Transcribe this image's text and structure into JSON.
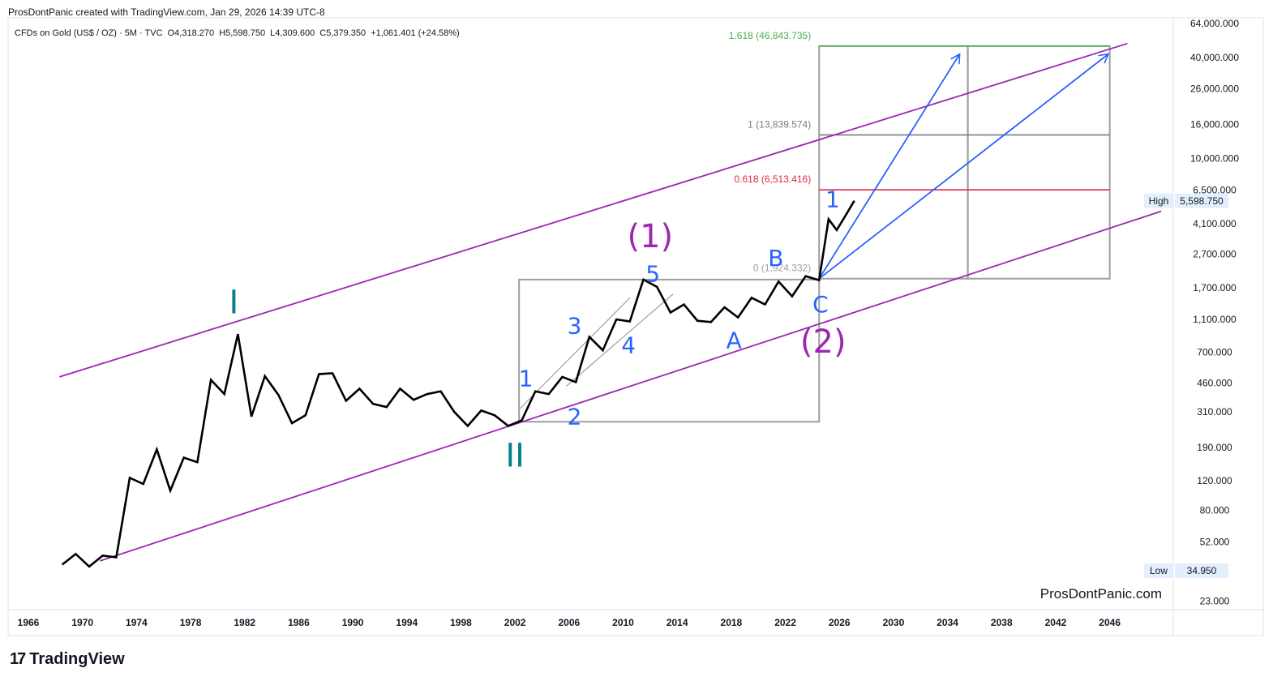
{
  "header": {
    "credit": "ProsDontPanic created with TradingView.com, Jan 29, 2026 14:39 UTC-8"
  },
  "symbol": {
    "name": "CFDs on Gold (US$ / OZ) · 5M · TVC",
    "open": "O4,318.270",
    "high": "H5,598.750",
    "low": "L4,309.600",
    "close": "C5,379.350",
    "change": "+1,061.401 (+24.58%)"
  },
  "watermark": "ProsDontPanic.com",
  "footer": {
    "logo_mark": "17",
    "logo_text": "TradingView"
  },
  "colors": {
    "price_line": "#000000",
    "channel": "#9c27b0",
    "wave_blue": "#2962ff",
    "wave_purple": "#9c27b0",
    "wave_teal": "#00838f",
    "fib_green": "#4caf50",
    "fib_gray": "#787b86",
    "fib_red": "#e0254a",
    "box_gray": "#9e9e9e",
    "axis_line": "#e0e3eb"
  },
  "chart_data": {
    "type": "line",
    "title": "CFDs on Gold (US$ / OZ) · 5M · TVC",
    "scale": "log",
    "x_ticks": [
      "1966",
      "1970",
      "1974",
      "1978",
      "1982",
      "1986",
      "1990",
      "1994",
      "1998",
      "2002",
      "2006",
      "2010",
      "2014",
      "2018",
      "2022",
      "2026",
      "2030",
      "2034",
      "2038",
      "2042",
      "2046"
    ],
    "y_ticks": [
      "64,000.000",
      "40,000.000",
      "26,000.000",
      "16,000.000",
      "10,000.000",
      "6,500.000",
      "4,100.000",
      "2,700.000",
      "1,700.000",
      "1,100.000",
      "700.000",
      "460.000",
      "310.000",
      "190.000",
      "120.000",
      "80.000",
      "52.000",
      "23.000"
    ],
    "y_tick_values": [
      64000,
      40000,
      26000,
      16000,
      10000,
      6500,
      4100,
      2700,
      1700,
      1100,
      700,
      460,
      310,
      190,
      120,
      80,
      52,
      23
    ],
    "xlim": [
      1964.5,
      2050.7
    ],
    "ylim": [
      20.5,
      69000
    ],
    "series": [
      {
        "name": "Gold price",
        "x": [
          1968.5,
          1969.5,
          1970.5,
          1971.5,
          1972.5,
          1973.5,
          1974.5,
          1975.5,
          1976.5,
          1977.5,
          1978.5,
          1979.5,
          1980.5,
          1981.5,
          1982.5,
          1983.5,
          1984.5,
          1985.5,
          1986.5,
          1987.5,
          1988.5,
          1989.5,
          1990.5,
          1991.5,
          1992.5,
          1993.5,
          1994.5,
          1995.5,
          1996.5,
          1997.5,
          1998.5,
          1999.5,
          2000.5,
          2001.5,
          2002.5,
          2003.5,
          2004.5,
          2005.5,
          2006.5,
          2007.5,
          2008.5,
          2009.5,
          2010.5,
          2011.5,
          2012.5,
          2013.5,
          2014.5,
          2015.5,
          2016.5,
          2017.5,
          2018.5,
          2019.5,
          2020.5,
          2021.5,
          2022.5,
          2023.5,
          2024.5,
          2025.2,
          2025.8,
          2026.4,
          2027.1
        ],
        "y": [
          38,
          44,
          37,
          43,
          42,
          125,
          115,
          185,
          105,
          165,
          155,
          480,
          395,
          900,
          290,
          505,
          390,
          265,
          295,
          520,
          525,
          360,
          425,
          345,
          330,
          425,
          365,
          395,
          410,
          310,
          255,
          315,
          295,
          255,
          275,
          410,
          395,
          500,
          465,
          865,
          720,
          1100,
          1070,
          1900,
          1720,
          1210,
          1350,
          1080,
          1060,
          1300,
          1130,
          1480,
          1350,
          1850,
          1510,
          1990,
          1885,
          4350,
          3750,
          4500,
          5600
        ]
      }
    ],
    "channel": {
      "upper": {
        "from": [
          1968.3,
          500
        ],
        "to": [
          2047.3,
          48500
        ]
      },
      "lower": {
        "from": [
          1971.3,
          40
        ],
        "to": [
          2049.8,
          4850
        ]
      }
    },
    "minor_channels": [
      {
        "from": [
          2002.3,
          320
        ],
        "to": [
          2010.5,
          1480
        ]
      },
      {
        "from": [
          2005.8,
          440
        ],
        "to": [
          2013.7,
          1560
        ]
      }
    ],
    "boxes": [
      {
        "x1": 2002.3,
        "x2": 2024.5,
        "y1": 1900,
        "y2": 270
      },
      {
        "x1": 2024.5,
        "x2": 2035.5,
        "y1": 46843.735,
        "y2": 1924.332
      },
      {
        "x1": 2035.5,
        "x2": 2046.0,
        "y1": 46843.735,
        "y2": 1924.332
      }
    ],
    "fib_levels": [
      {
        "label": "1.618 (46,843.735)",
        "value": 46843.735,
        "color": "#4caf50"
      },
      {
        "label": "1 (13,839.574)",
        "value": 13839.574,
        "color": "#787b86"
      },
      {
        "label": "0.618 (6,513.416)",
        "value": 6513.416,
        "color": "#e0254a"
      },
      {
        "label": "0 (1,924.332)",
        "value": 1924.332,
        "color": "#9e9e9e"
      }
    ],
    "fib_range": [
      2024.5,
      2046.0
    ],
    "arrows": [
      {
        "from": [
          2024.5,
          1924.332
        ],
        "to": [
          2034.9,
          42000
        ]
      },
      {
        "from": [
          2024.5,
          1924.332
        ],
        "to": [
          2045.9,
          42000
        ]
      }
    ],
    "wave_labels": [
      {
        "text": "I",
        "x": 1981.2,
        "y": 1350,
        "color": "#00838f",
        "size": 40
      },
      {
        "text": "II",
        "x": 2002.0,
        "y": 165,
        "color": "#00838f",
        "size": 40
      },
      {
        "text": "(1)",
        "x": 2012.0,
        "y": 3350,
        "color": "#9c27b0",
        "size": 40
      },
      {
        "text": "(2)",
        "x": 2024.8,
        "y": 790,
        "color": "#9c27b0",
        "size": 40
      },
      {
        "text": "1",
        "x": 2002.8,
        "y": 480,
        "color": "#2962ff",
        "size": 28
      },
      {
        "text": "2",
        "x": 2006.4,
        "y": 285,
        "color": "#2962ff",
        "size": 28
      },
      {
        "text": "3",
        "x": 2006.4,
        "y": 990,
        "color": "#2962ff",
        "size": 28
      },
      {
        "text": "4",
        "x": 2010.4,
        "y": 760,
        "color": "#2962ff",
        "size": 28
      },
      {
        "text": "5",
        "x": 2012.2,
        "y": 2020,
        "color": "#2962ff",
        "size": 28
      },
      {
        "text": "A",
        "x": 2018.2,
        "y": 810,
        "color": "#2962ff",
        "size": 28
      },
      {
        "text": "B",
        "x": 2021.3,
        "y": 2500,
        "color": "#2962ff",
        "size": 28
      },
      {
        "text": "C",
        "x": 2024.6,
        "y": 1330,
        "color": "#2962ff",
        "size": 28
      },
      {
        "text": "1",
        "x": 2025.5,
        "y": 5600,
        "color": "#2962ff",
        "size": 28
      }
    ],
    "price_tags": [
      {
        "label": "High",
        "value_text": "5,598.750",
        "value": 5598.75
      },
      {
        "label": "Low",
        "value_text": "34.950",
        "value": 34.95
      }
    ]
  }
}
